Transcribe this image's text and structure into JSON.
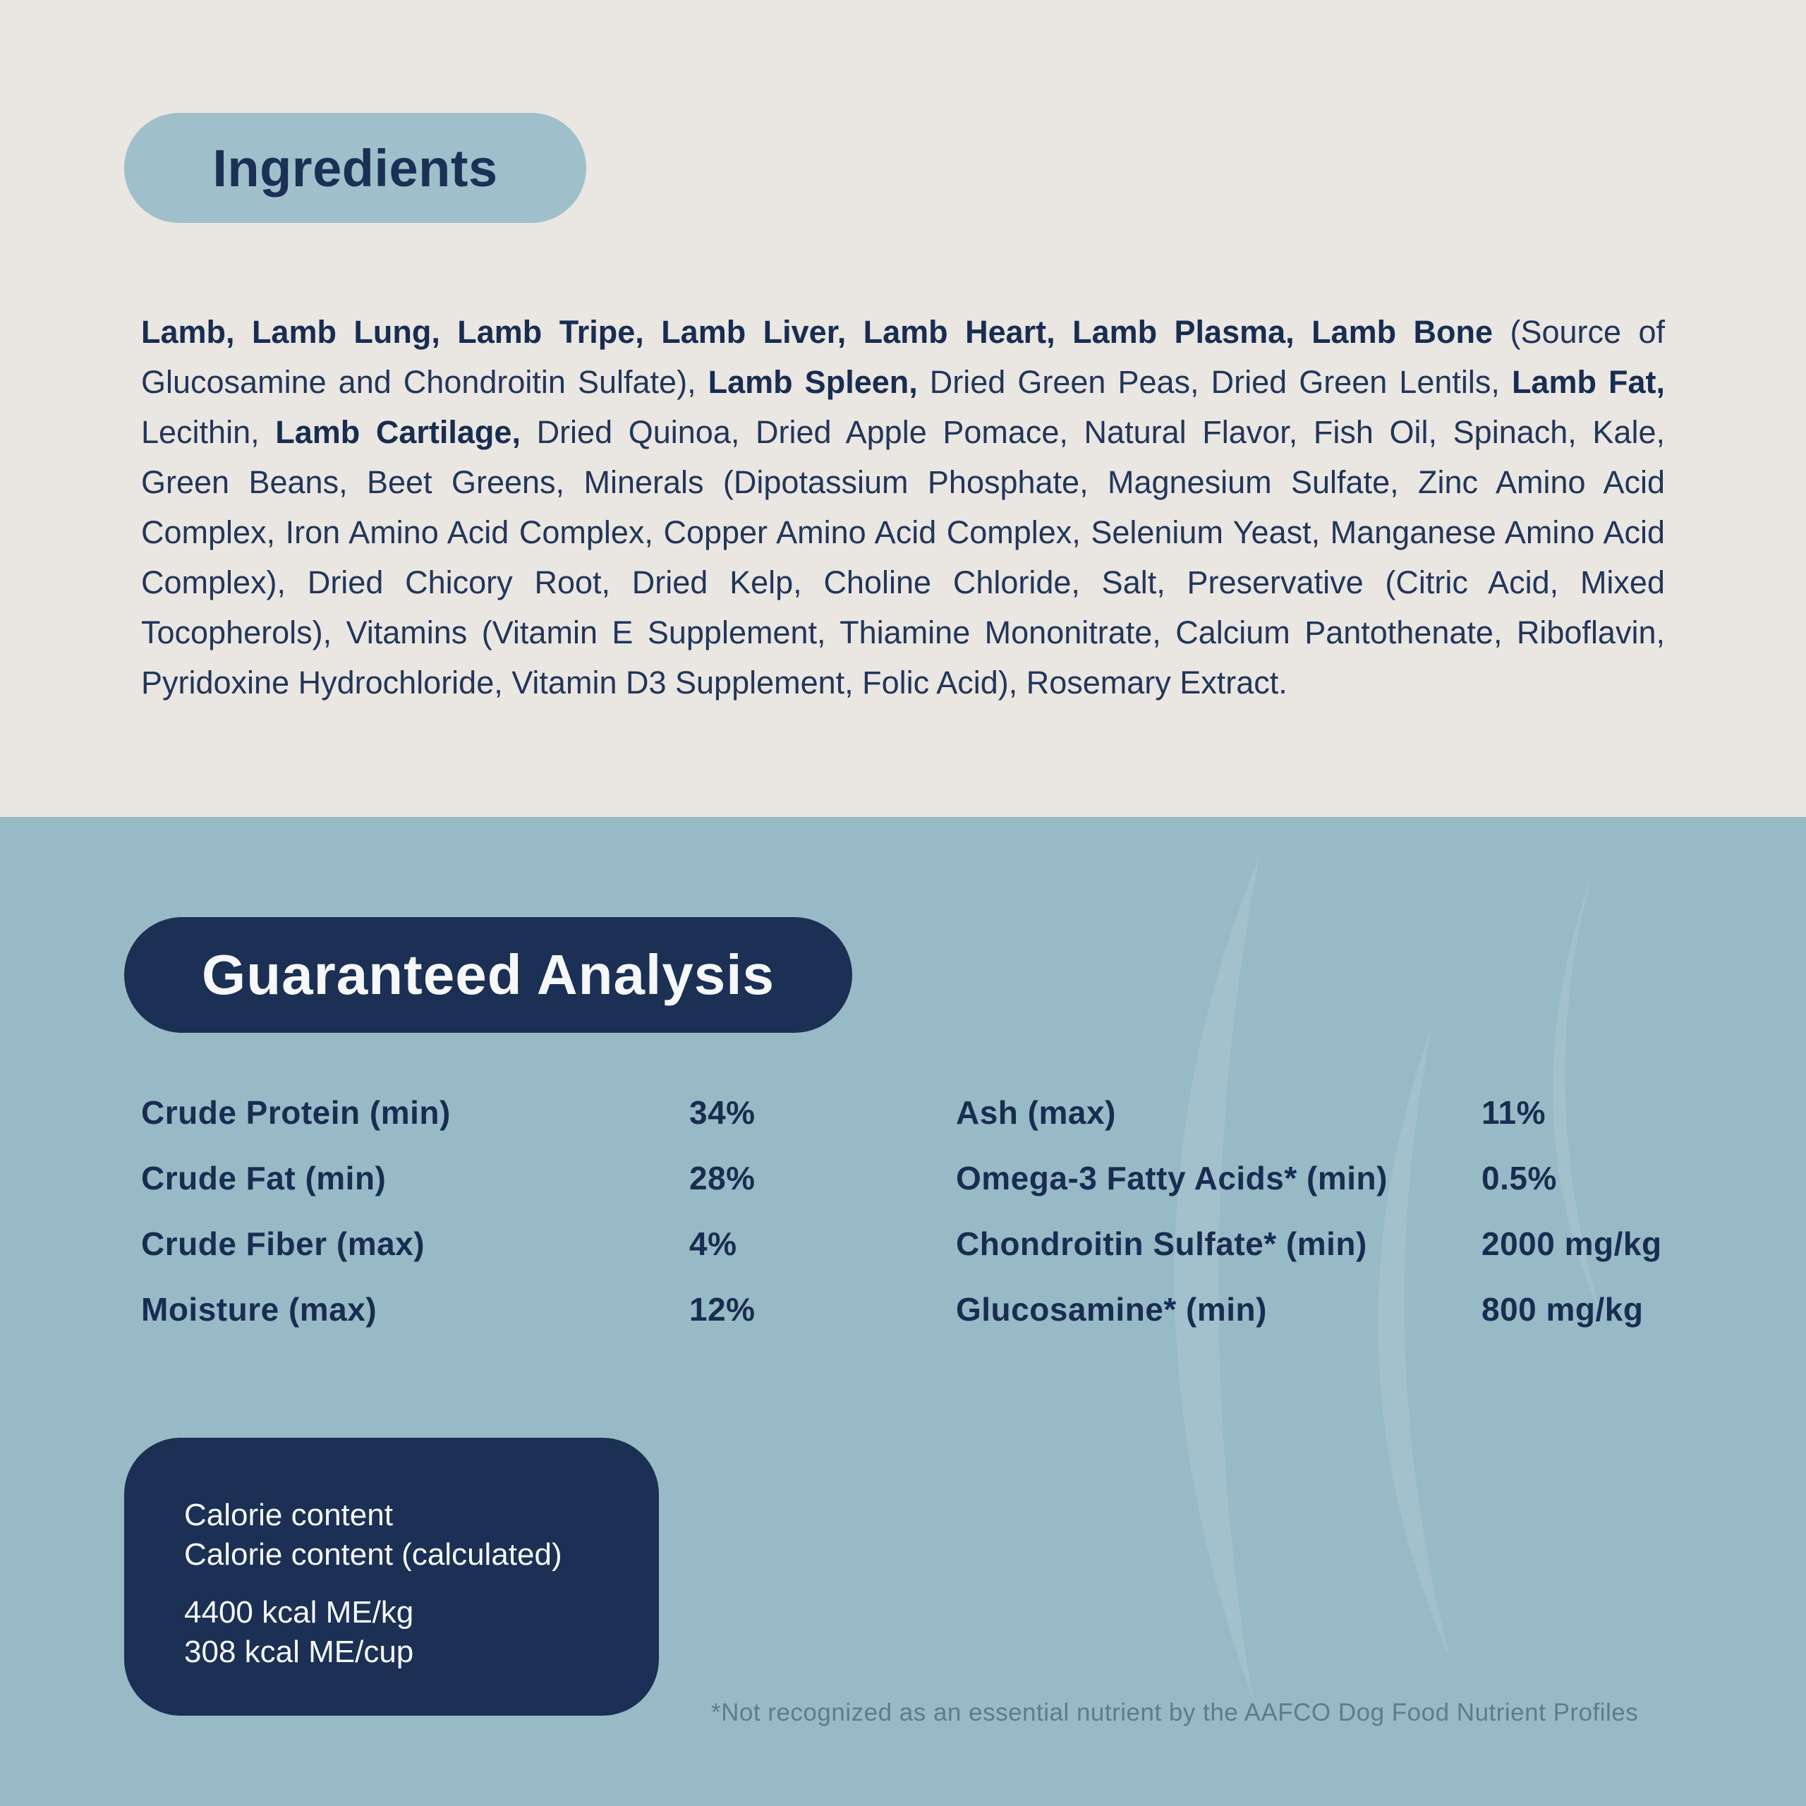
{
  "colors": {
    "top_bg": "#EAE6E2",
    "bottom_bg": "#98BAC6",
    "badge_blue": "#9FBFCB",
    "navy": "#1B3054",
    "text_navy": "#223659",
    "white_text": "#F5F7F8",
    "footnote_text": "#5E7C8B",
    "watermark": "#A3C1CC"
  },
  "ingredients": {
    "title": "Ingredients",
    "segments": [
      {
        "bold": true,
        "text": "Lamb, Lamb Lung, Lamb Tripe, Lamb Liver, Lamb Heart, Lamb Plasma, Lamb Bone"
      },
      {
        "bold": false,
        "text": " (Source of Glucosamine and Chondroitin Sulfate), "
      },
      {
        "bold": true,
        "text": "Lamb Spleen,"
      },
      {
        "bold": false,
        "text": " Dried Green Peas, Dried Green Lentils, "
      },
      {
        "bold": true,
        "text": "Lamb Fat,"
      },
      {
        "bold": false,
        "text": " Lecithin, "
      },
      {
        "bold": true,
        "text": "Lamb Cartilage,"
      },
      {
        "bold": false,
        "text": " Dried Quinoa, Dried Apple Pomace, Natural Flavor, Fish Oil, Spinach, Kale, Green Beans, Beet Greens, Minerals (Dipotassium Phosphate, Magnesium Sulfate, Zinc Amino Acid Complex, Iron Amino Acid Complex, Copper Amino Acid Complex, Selenium Yeast, Manganese Amino Acid Complex), Dried Chicory Root, Dried Kelp, Choline Chloride, Salt, Preservative (Citric Acid, Mixed Tocopherols), Vitamins (Vitamin E Supplement, Thiamine Mononitrate, Calcium Pantothenate, Riboflavin, Pyridoxine Hydrochloride, Vitamin D3 Supplement, Folic Acid), Rosemary Extract."
      }
    ]
  },
  "analysis": {
    "title": "Guaranteed Analysis",
    "columns": {
      "left": [
        {
          "label": "Crude Protein (min)",
          "value": "34%"
        },
        {
          "label": "Crude Fat (min)",
          "value": "28%"
        },
        {
          "label": "Crude Fiber (max)",
          "value": "4%"
        },
        {
          "label": "Moisture (max)",
          "value": "12%"
        }
      ],
      "right": [
        {
          "label": "Ash (max)",
          "value": "11%"
        },
        {
          "label": "Omega-3 Fatty Acids* (min)",
          "value": "0.5%"
        },
        {
          "label": "Chondroitin Sulfate* (min)",
          "value": "2000 mg/kg"
        },
        {
          "label": "Glucosamine* (min)",
          "value": "800 mg/kg"
        }
      ]
    }
  },
  "calorie_box": {
    "lines": [
      "Calorie content",
      "Calorie content (calculated)"
    ],
    "values": [
      "4400 kcal ME/kg",
      "308 kcal ME/cup"
    ]
  },
  "footnote": "*Not recognized as an essential nutrient by the AAFCO Dog Food Nutrient Profiles"
}
